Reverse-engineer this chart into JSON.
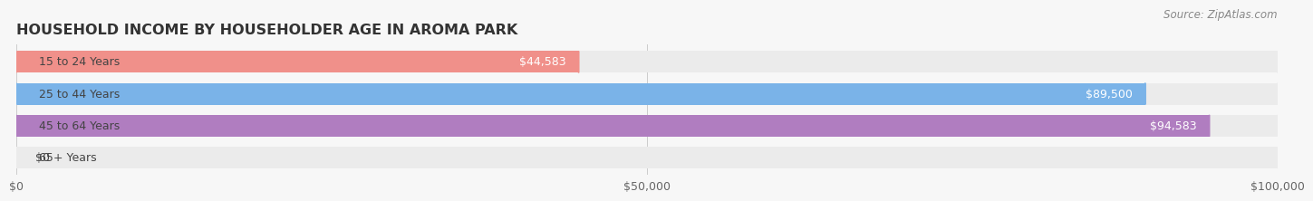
{
  "title": "HOUSEHOLD INCOME BY HOUSEHOLDER AGE IN AROMA PARK",
  "source": "Source: ZipAtlas.com",
  "categories": [
    "15 to 24 Years",
    "25 to 44 Years",
    "45 to 64 Years",
    "65+ Years"
  ],
  "values": [
    44583,
    89500,
    94583,
    0
  ],
  "bar_colors": [
    "#f0908a",
    "#7ab3e8",
    "#b07dc0",
    "#6ec8cc"
  ],
  "bar_bg_color": "#ebebeb",
  "xlim": [
    0,
    100000
  ],
  "xticks": [
    0,
    50000,
    100000
  ],
  "xtick_labels": [
    "$0",
    "$50,000",
    "$100,000"
  ],
  "value_labels": [
    "$44,583",
    "$89,500",
    "$94,583",
    "$0"
  ],
  "title_fontsize": 11.5,
  "label_fontsize": 9,
  "tick_fontsize": 9,
  "source_fontsize": 8.5,
  "background_color": "#f7f7f7"
}
